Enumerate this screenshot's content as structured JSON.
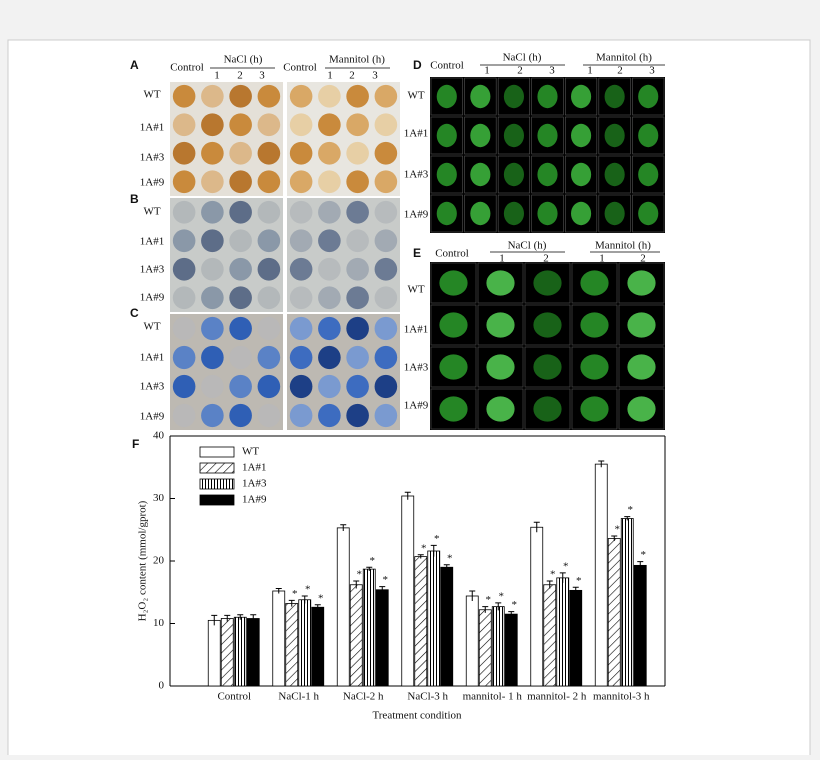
{
  "panels": {
    "a": {
      "label": "A",
      "headers": [
        "Control",
        "NaCl (h)",
        "1",
        "2",
        "3",
        "Control",
        "Mannitol (h)",
        "1",
        "2",
        "3"
      ],
      "rows": [
        "WT",
        "1A#1",
        "1A#3",
        "1A#9"
      ]
    },
    "b": {
      "label": "B",
      "rows": [
        "WT",
        "1A#1",
        "1A#3",
        "1A#9"
      ]
    },
    "c": {
      "label": "C",
      "rows": [
        "WT",
        "1A#1",
        "1A#3",
        "1A#9"
      ]
    },
    "d": {
      "label": "D",
      "headers": [
        "Control",
        "NaCl (h)",
        "1",
        "2",
        "3",
        "Mannitol (h)",
        "1",
        "2",
        "3"
      ],
      "rows": [
        "WT",
        "1A#1",
        "1A#3",
        "1A#9"
      ]
    },
    "e": {
      "label": "E",
      "headers": [
        "Control",
        "NaCl (h)",
        "1",
        "2",
        "Mannitol (h)",
        "1",
        "2"
      ],
      "rows": [
        "WT",
        "1A#1",
        "1A#3",
        "1A#9"
      ]
    }
  },
  "chart_data": {
    "type": "bar",
    "panel_label": "F",
    "y_label": "H₂O₂ content (mmol/gprot)",
    "x_label": "Treatment condition",
    "categories": [
      "Control",
      "NaCl-1 h",
      "NaCl-2 h",
      "NaCl-3 h",
      "mannitol- 1 h",
      "mannitol- 2 h",
      "mannitol-3 h"
    ],
    "ylim": [
      0,
      40
    ],
    "yticks": [
      0,
      10,
      20,
      30,
      40
    ],
    "series": [
      {
        "name": "WT",
        "color": "#ffffff",
        "pattern": "none",
        "values": [
          10.5,
          15.2,
          25.3,
          30.4,
          14.4,
          25.4,
          35.5
        ],
        "errors": [
          0.8,
          0.4,
          0.5,
          0.6,
          0.8,
          0.8,
          0.5
        ],
        "significance": [
          null,
          null,
          null,
          null,
          null,
          null,
          null
        ]
      },
      {
        "name": "1A#1",
        "color": "#000000",
        "pattern": "diagonal",
        "values": [
          10.8,
          13.2,
          16.2,
          20.7,
          12.2,
          16.2,
          23.6
        ],
        "errors": [
          0.5,
          0.5,
          0.6,
          0.3,
          0.5,
          0.6,
          0.4
        ],
        "significance": [
          null,
          "*",
          "*",
          "*",
          "*",
          "*",
          "*"
        ]
      },
      {
        "name": "1A#3",
        "color": "#000000",
        "pattern": "vertical",
        "values": [
          11.0,
          13.8,
          18.7,
          21.6,
          12.7,
          17.3,
          26.8
        ],
        "errors": [
          0.4,
          0.6,
          0.3,
          0.9,
          0.6,
          0.8,
          0.3
        ],
        "significance": [
          null,
          "*",
          "*",
          "*",
          "*",
          "*",
          "*"
        ]
      },
      {
        "name": "1A#9",
        "color": "#000000",
        "pattern": "solid",
        "values": [
          10.8,
          12.6,
          15.4,
          19.0,
          11.5,
          15.3,
          19.3
        ],
        "errors": [
          0.6,
          0.4,
          0.5,
          0.4,
          0.4,
          0.5,
          0.6
        ],
        "significance": [
          null,
          "*",
          "*",
          "*",
          "*",
          "*",
          "*"
        ]
      }
    ]
  }
}
